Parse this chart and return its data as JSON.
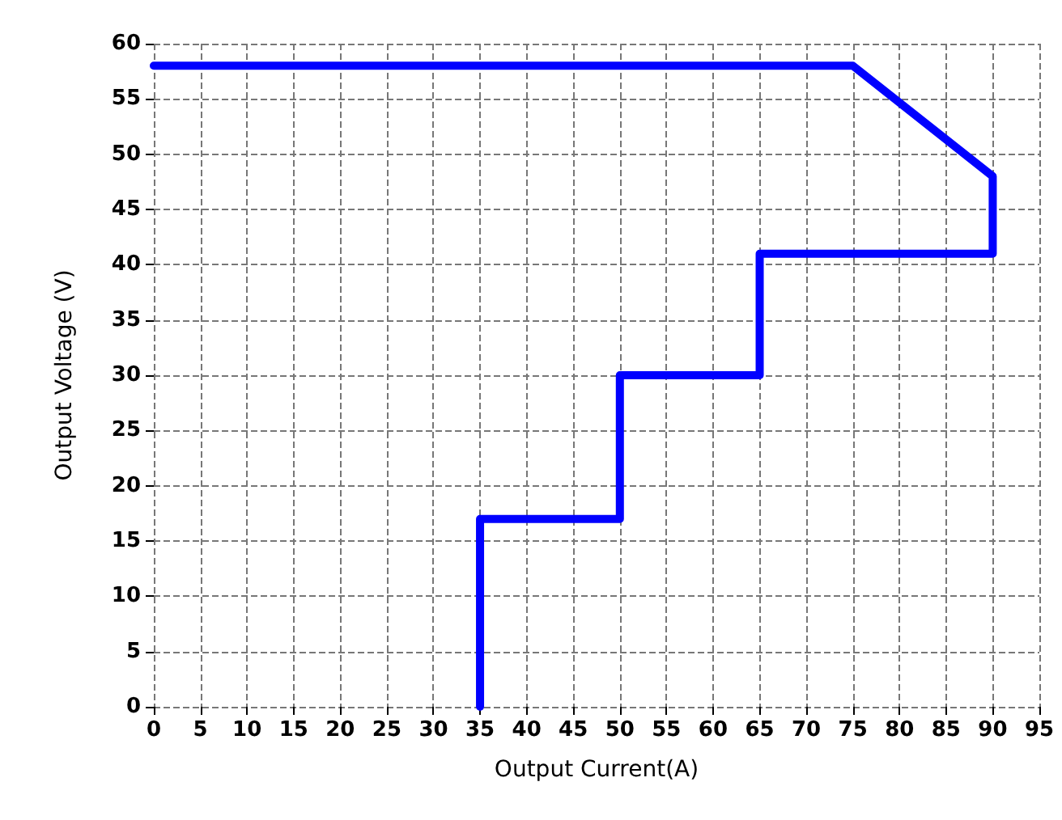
{
  "chart_data": {
    "type": "line",
    "xlabel": "Output Current(A)",
    "ylabel": "Output Voltage (V)",
    "series": [
      {
        "color": "#0000ff",
        "x": [
          35,
          35,
          50,
          50,
          65,
          65,
          90,
          90,
          75,
          0
        ],
        "values": [
          0,
          17,
          17,
          30,
          30,
          41,
          41,
          48,
          58,
          58
        ]
      }
    ],
    "xlim": [
      0,
      95
    ],
    "xticks": [
      0,
      5,
      10,
      15,
      20,
      25,
      30,
      35,
      40,
      45,
      50,
      55,
      60,
      65,
      70,
      75,
      80,
      85,
      90,
      95
    ],
    "ylim": [
      0,
      60
    ],
    "yticks": [
      0,
      5,
      10,
      15,
      20,
      25,
      30,
      35,
      40,
      45,
      50,
      55,
      60
    ],
    "grid": true,
    "marker": "none",
    "line_style": "solid"
  }
}
